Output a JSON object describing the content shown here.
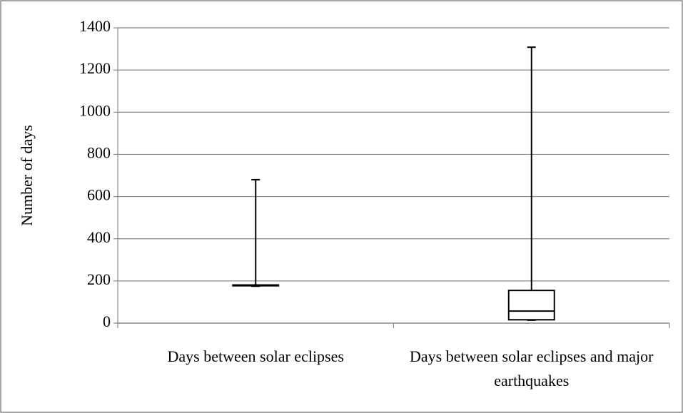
{
  "chart_data": {
    "type": "box",
    "y_label": "Number of days",
    "categories": [
      "Days between solar eclipses",
      "Days between solar eclipses and major earthquakes"
    ],
    "boxes": [
      {
        "min": 175,
        "q1": 177,
        "median": 178,
        "q3": 181,
        "max": 680
      },
      {
        "min": 14,
        "q1": 16,
        "median": 57,
        "q3": 155,
        "max": 1308
      }
    ],
    "color": "#000000",
    "ylim": [
      0,
      1400
    ],
    "yticks": [
      0,
      200,
      400,
      600,
      800,
      1000,
      1200,
      1400
    ],
    "grid": true
  }
}
